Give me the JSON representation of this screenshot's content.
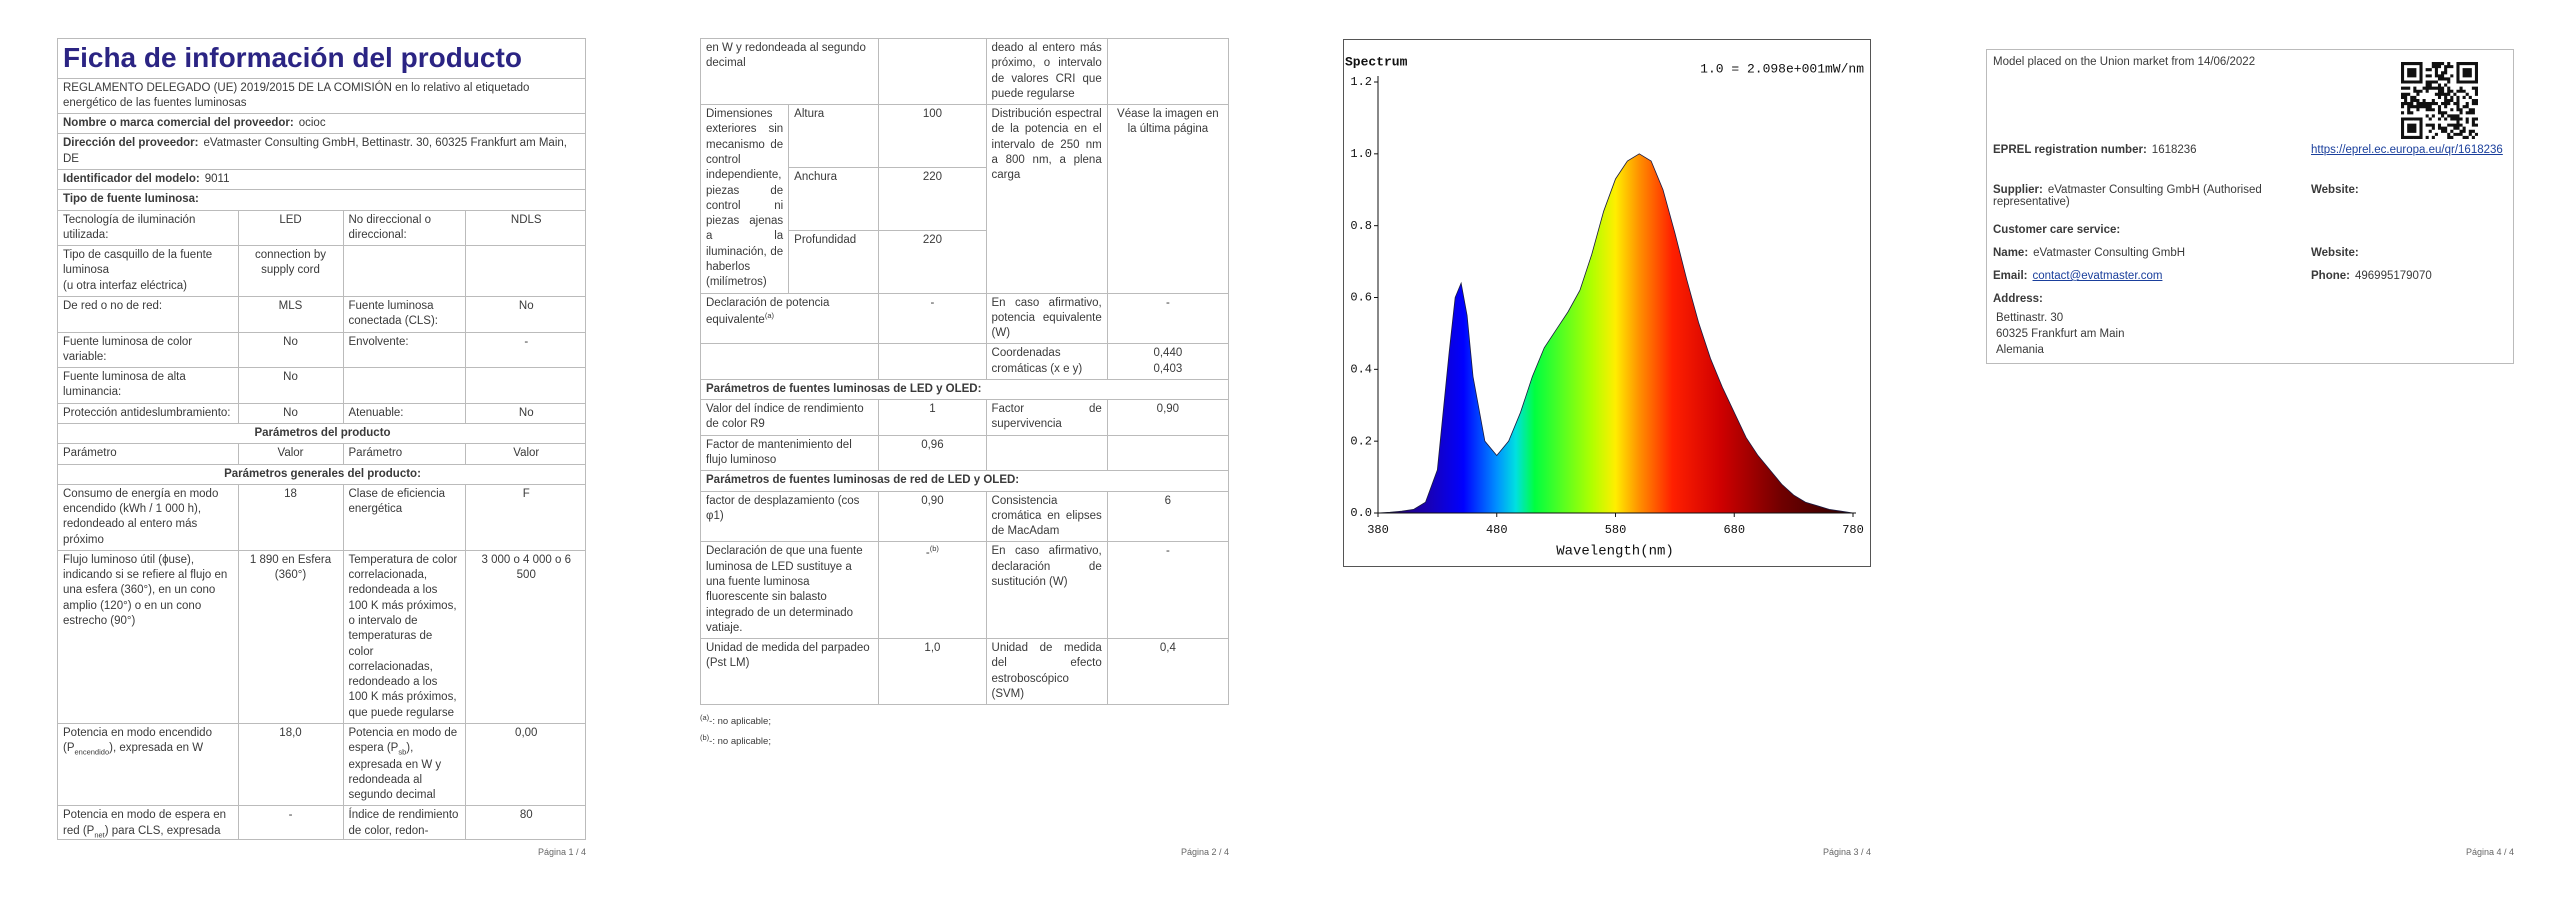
{
  "page1": {
    "title": "Ficha de información del producto",
    "regulation": "REGLAMENTO DELEGADO (UE) 2019/2015 DE LA COMISIÓN en lo relativo al etiquetado energético de las fuentes luminosas",
    "fields": [
      {
        "label": "Nombre o marca comercial del proveedor:",
        "value": "ocioc"
      },
      {
        "label": "Dirección del proveedor:",
        "value": "eVatmaster Consulting GmbH, Bettinastr. 30, 60325 Frankfurt am Main, DE"
      },
      {
        "label": "Identificador del modelo:",
        "value": "9011"
      }
    ],
    "source_type_heading": "Tipo de fuente luminosa:",
    "rows": [
      [
        "Tecnología de iluminación utilizada:",
        "LED",
        "No direccional o direccional:",
        "NDLS"
      ],
      [
        "Tipo de casquillo de la fuente luminosa\n(u otra interfaz eléctrica)",
        "connection by supply cord",
        null,
        null
      ],
      [
        "De red o no de red:",
        "MLS",
        "Fuente luminosa conectada (CLS):",
        "No"
      ],
      [
        "Fuente luminosa de color variable:",
        "No",
        "Envolvente:",
        "-"
      ],
      [
        "Fuente luminosa de alta luminancia:",
        "No",
        null,
        null
      ],
      [
        "Protección antideslumbramiento:",
        "No",
        "Atenuable:",
        "No"
      ],
      {
        "heading": "Parámetros del producto"
      },
      [
        "Parámetro",
        "Valor",
        "Parámetro",
        "Valor"
      ],
      {
        "heading": "Parámetros generales del producto:"
      },
      [
        "Consumo de energía en modo encendido (kWh / 1 000 h), redondeado al entero más próximo",
        "18",
        "Clase de eficiencia energética",
        "F"
      ],
      [
        "Flujo luminoso útil (ϕuse), indicando si se refiere al flujo en una esfera (360°), en un cono amplio (120°) o en un cono estrecho (90°)",
        "1 890 en Esfera (360°)",
        "Temperatura de color correlacionada, redondeada a los 100 K más próximos, o intervalo de temperaturas de color correlacionadas, redondeado a los 100 K más próximos, que puede regularse",
        "3 000 o 4 000 o 6 500"
      ],
      [
        [
          "Potencia en modo encendido (P",
          {
            "sub": "encendido"
          },
          "), expresada en W"
        ],
        "18,0",
        [
          "Potencia en modo de espera (P",
          {
            "sub": "sb"
          },
          "), expresada en W y redondeada al segundo decimal"
        ],
        "0,00"
      ],
      [
        [
          "Potencia en modo de espera en red (P",
          {
            "sub": "net"
          },
          ") para CLS, expresada"
        ],
        "-",
        "Índice de rendimiento de color, redon-",
        "80"
      ]
    ],
    "footer": "Página 1 / 4"
  },
  "page2": {
    "rows": [
      [
        "en W y redondeada al segundo decimal",
        null,
        "deado al entero más próximo, o intervalo de valores CRI que puede regularse",
        null
      ],
      [
        "Dimensiones exteriores sin mecanismo de control independiente, piezas de control ni piezas ajenas a la iluminación, de haberlos (milímetros)",
        {
          "dims": [
            [
              "Altura",
              "100"
            ],
            [
              "Anchura",
              "220"
            ],
            [
              "Profundidad",
              "220"
            ]
          ]
        },
        "Distribución espectral de la potencia en el intervalo de 250 nm a 800 nm, a plena carga",
        "Véase la imagen en la última página"
      ],
      [
        [
          "Declaración de potencia equivalente",
          {
            "sup": "(a)"
          }
        ],
        "-",
        "En caso afirmativo, potencia equivalente (W)",
        "-"
      ],
      [
        null,
        null,
        "Coordenadas cromáticas (x e y)",
        "0,440\n0,403"
      ],
      {
        "heading": "Parámetros de fuentes luminosas de LED y OLED:"
      },
      [
        "Valor del índice de rendimiento de color R9",
        "1",
        "Factor de supervivencia",
        "0,90"
      ],
      [
        "Factor de mantenimiento del flujo luminoso",
        "0,96",
        null,
        null
      ],
      {
        "heading": "Parámetros de fuentes luminosas de red de LED y OLED:"
      },
      [
        "factor de desplazamiento (cos φ1)",
        "0,90",
        "Consistencia cromática en elipses de MacAdam",
        "6"
      ],
      [
        "Declaración de que una fuente luminosa de LED sustituye a una fuente luminosa fluorescente sin balasto integrado de un determinado vatiaje.",
        [
          "-",
          {
            "sup": "(b)"
          }
        ],
        "En caso afirmativo, declaración de sustitución (W)",
        "-"
      ],
      [
        "Unidad de medida del parpadeo (Pst LM)",
        "1,0",
        "Unidad de medida del efecto estroboscópico (SVM)",
        "0,4"
      ]
    ],
    "notes": [
      [
        {
          "sup": "(a)"
        },
        "-: no aplicable;"
      ],
      [
        {
          "sup": "(b)"
        },
        "-: no aplicable;"
      ]
    ],
    "footer": "Página 2 / 4"
  },
  "chart_data": {
    "type": "area",
    "title": "Spectrum",
    "subtitle": "1.0 = 2.098e+001mW/nm",
    "x_label": "Wavelength(nm)",
    "x": [
      380,
      390,
      400,
      410,
      420,
      430,
      440,
      445,
      450,
      455,
      460,
      470,
      480,
      490,
      500,
      510,
      520,
      530,
      540,
      550,
      560,
      570,
      580,
      590,
      600,
      610,
      620,
      630,
      640,
      650,
      660,
      670,
      680,
      690,
      700,
      710,
      720,
      730,
      740,
      750,
      760,
      770,
      780
    ],
    "values": [
      0,
      0.002,
      0.005,
      0.01,
      0.03,
      0.12,
      0.45,
      0.6,
      0.64,
      0.55,
      0.38,
      0.2,
      0.16,
      0.2,
      0.28,
      0.38,
      0.46,
      0.51,
      0.56,
      0.62,
      0.72,
      0.84,
      0.93,
      0.98,
      1.0,
      0.98,
      0.9,
      0.78,
      0.65,
      0.53,
      0.43,
      0.35,
      0.28,
      0.21,
      0.16,
      0.12,
      0.08,
      0.05,
      0.03,
      0.02,
      0.01,
      0.005,
      0
    ],
    "xlim": [
      380,
      780
    ],
    "ylim": [
      0,
      1.2
    ],
    "xticks": [
      380,
      480,
      580,
      680,
      780
    ],
    "yticks": [
      {
        "value": 0,
        "label": "0.0"
      },
      0.2,
      0.4,
      0.6,
      0.8,
      {
        "value": 1,
        "label": "1.0"
      },
      1.2
    ]
  },
  "page3": {
    "footer": "Página 3 / 4"
  },
  "page4": {
    "placed": "Model placed on the Union market from 14/06/2022",
    "eprel_label": "EPREL registration number:",
    "eprel_value": "1618236",
    "eprel_link": "https://eprel.ec.europa.eu/qr/1618236",
    "supplier_label": "Supplier:",
    "supplier_value": "eVatmaster Consulting GmbH (Authorised representative)",
    "website_label": "Website:",
    "customer_care": "Customer care service:",
    "name_label": "Name:",
    "name_value": "eVatmaster Consulting GmbH",
    "website_label2": "Website:",
    "email_label": "Email:",
    "email_value": "contact@evatmaster.com",
    "phone_label": "Phone:",
    "phone_value": "496995179070",
    "address_label": "Address:",
    "address_lines": [
      "Bettinastr. 30",
      "60325 Frankfurt am Main",
      "Alemania"
    ],
    "footer": "Página 4 / 4"
  }
}
